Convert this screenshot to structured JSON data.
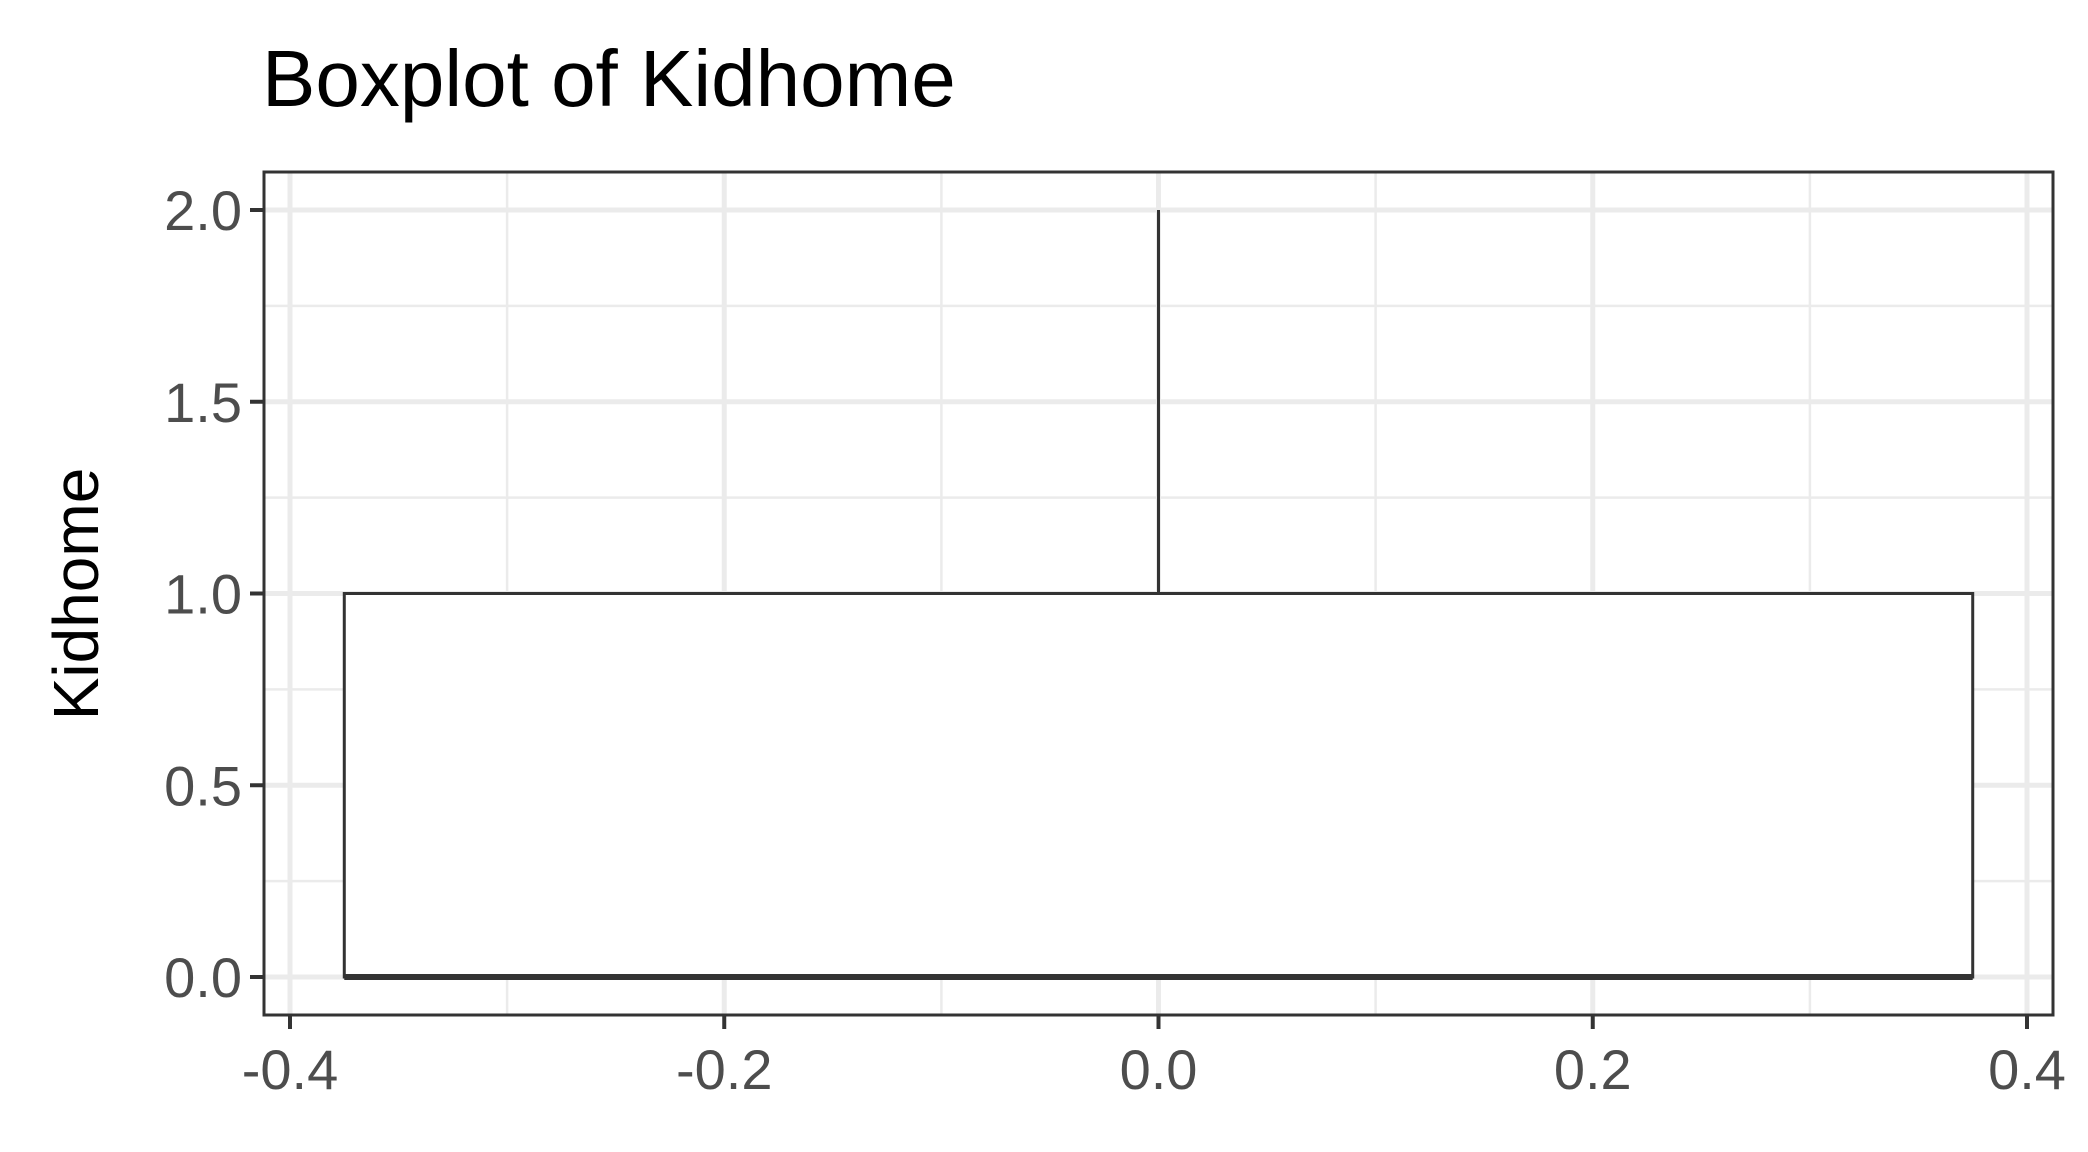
{
  "chart_data": {
    "type": "boxplot",
    "title": "Boxplot of Kidhome",
    "xlabel": "",
    "ylabel": "Kidhome",
    "xlim": [
      -0.4,
      0.4
    ],
    "ylim": [
      0.0,
      2.0
    ],
    "x_ticks": [
      -0.4,
      -0.2,
      0.0,
      0.2,
      0.4
    ],
    "x_tick_labels": [
      "-0.4",
      "-0.2",
      "0.0",
      "0.2",
      "0.4"
    ],
    "y_ticks": [
      0.0,
      0.5,
      1.0,
      1.5,
      2.0
    ],
    "y_tick_labels": [
      "0.0",
      "0.5",
      "1.0",
      "1.5",
      "2.0"
    ],
    "grid": true,
    "box": {
      "x_center": 0.0,
      "x_half_width": 0.375,
      "min": 0.0,
      "q1": 0.0,
      "median": 0.0,
      "q3": 1.0,
      "max": 2.0
    }
  }
}
